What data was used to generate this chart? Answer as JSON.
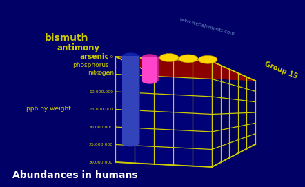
{
  "title": "Abundances in humans",
  "ylabel": "ppb by weight",
  "group_label": "Group 15",
  "watermark": "www.webelements.com",
  "elements": [
    "nitrogen",
    "phosphorus",
    "arsenic",
    "antimony",
    "bismuth"
  ],
  "values": [
    25000000,
    7000000,
    0,
    0,
    0
  ],
  "ylim": [
    0,
    30000000
  ],
  "ytick_labels": [
    "0",
    "5,000,000",
    "10,000,000",
    "15,000,000",
    "20,000,000",
    "25,000,000",
    "30,000,000"
  ],
  "bg_color": "#000066",
  "floor_color": "#8B0000",
  "grid_color": "#CCCC00",
  "text_color": "#CCCC00",
  "title_color": "#FFFFFF",
  "dot_color": "#FFD700",
  "bar_blue": "#3344BB",
  "bar_pink": "#FF44CC",
  "bar_blue_dark": "#1122AA",
  "bar_pink_dark": "#CC2299"
}
